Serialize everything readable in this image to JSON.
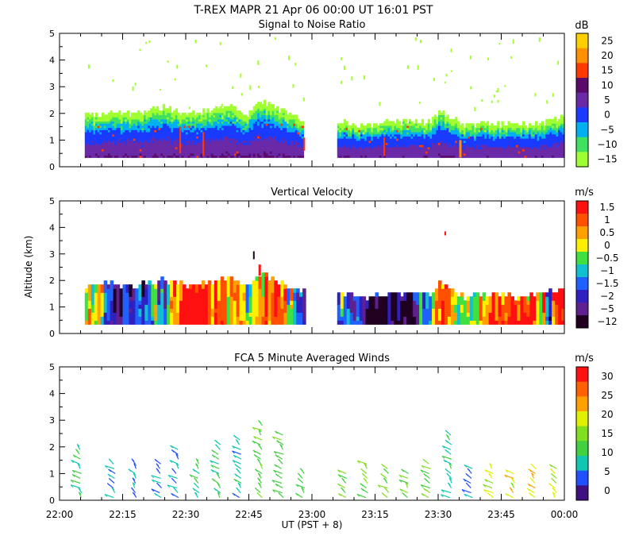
{
  "figure": {
    "title": "T-REX   MAPR 21 Apr 06   00:00 UT   16:01   PST",
    "ylabel": "Altitude  (km)",
    "xlabel": "UT  (PST + 8)",
    "xticks": [
      "22:00",
      "22:15",
      "22:30",
      "22:45",
      "23:00",
      "23:15",
      "23:30",
      "23:45",
      "00:00"
    ],
    "yticks": [
      "0",
      "1",
      "2",
      "3",
      "4",
      "5"
    ]
  },
  "chart_data": [
    {
      "type": "heatmap",
      "title": "Signal to Noise Ratio",
      "colorbar_unit": "dB",
      "colorbar_ticks": [
        "25",
        "20",
        "15",
        "10",
        "5",
        "0",
        "−5",
        "−10",
        "−15"
      ],
      "colors": [
        "#ffd000",
        "#ff9000",
        "#ff3a00",
        "#5a0a6a",
        "#6a2aa8",
        "#1a3aff",
        "#00b0f0",
        "#40e060",
        "#a0ff30"
      ],
      "x_range_min": [
        0,
        120
      ],
      "ylim": [
        0,
        5
      ],
      "data_gap_min": [
        58,
        66
      ],
      "echo_top_km": [
        [
          6,
          1.9
        ],
        [
          12,
          2.0
        ],
        [
          18,
          1.9
        ],
        [
          24,
          2.2
        ],
        [
          30,
          1.9
        ],
        [
          36,
          2.1
        ],
        [
          40,
          2.3
        ],
        [
          44,
          1.9
        ],
        [
          48,
          2.4
        ],
        [
          52,
          2.1
        ],
        [
          56,
          1.8
        ],
        [
          66,
          1.7
        ],
        [
          72,
          1.5
        ],
        [
          78,
          1.6
        ],
        [
          84,
          1.7
        ],
        [
          88,
          1.6
        ],
        [
          90,
          2.1
        ],
        [
          96,
          1.5
        ],
        [
          102,
          1.6
        ],
        [
          108,
          1.5
        ],
        [
          114,
          1.6
        ],
        [
          120,
          1.8
        ]
      ]
    },
    {
      "type": "heatmap",
      "title": "Vertical Velocity",
      "colorbar_unit": "m/s",
      "colorbar_ticks": [
        "1.5",
        "1",
        "0.5",
        "0",
        "−0.5",
        "−1",
        "−1.5",
        "−2",
        "−5",
        "−12"
      ],
      "colors": [
        "#ff1010",
        "#ff5000",
        "#ffa000",
        "#fff000",
        "#40e040",
        "#10c0d0",
        "#2060ff",
        "#3020c0",
        "#602090",
        "#200020"
      ],
      "x_range_min": [
        0,
        120
      ],
      "ylim": [
        0,
        5
      ],
      "data_gap_min": [
        58,
        66
      ]
    },
    {
      "type": "scatter",
      "title": "FCA 5 Minute Averaged Winds",
      "colorbar_unit": "m/s",
      "colorbar_ticks": [
        "30",
        "25",
        "20",
        "15",
        "10",
        "5",
        "0"
      ],
      "colors": [
        "#ff1010",
        "#ff6000",
        "#ffa000",
        "#e0f000",
        "#80e020",
        "#40d040",
        "#10c8b0",
        "#2050ff",
        "#401080"
      ],
      "x_range_min": [
        0,
        120
      ],
      "ylim": [
        0,
        5
      ],
      "profile_times_min": [
        5,
        13,
        18,
        24,
        28,
        33,
        38,
        43,
        48,
        53,
        58,
        68,
        73,
        78,
        83,
        88,
        93,
        98,
        103,
        108,
        113,
        118
      ],
      "profile_top_km": [
        2.0,
        1.5,
        1.5,
        1.5,
        1.9,
        1.5,
        2.2,
        2.4,
        2.9,
        2.5,
        1.1,
        1.1,
        1.4,
        1.2,
        1.1,
        1.4,
        2.6,
        1.2,
        1.2,
        1.1,
        1.3,
        1.2
      ],
      "profile_speed_ms": [
        8,
        6,
        5,
        5,
        6,
        9,
        10,
        7,
        12,
        11,
        12,
        13,
        14,
        14,
        15,
        14,
        8,
        5,
        17,
        19,
        20,
        17
      ]
    }
  ]
}
